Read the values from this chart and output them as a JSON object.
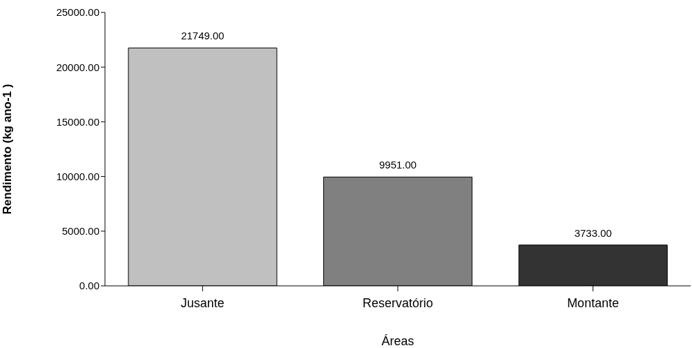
{
  "chart_data": {
    "type": "bar",
    "xlabel": "Áreas",
    "ylabel": "Rendimento (kg ano-1 )",
    "categories": [
      "Jusante",
      "Reservatório",
      "Montante"
    ],
    "values": [
      21749,
      9951,
      3733
    ],
    "colors": [
      "#c0c0c0",
      "#808080",
      "#333333"
    ],
    "value_labels": [
      "21749.00",
      "9951.00",
      "3733.00"
    ],
    "ylim": [
      0,
      25000
    ],
    "yticks": [
      {
        "value": 0,
        "label": "0.00"
      },
      {
        "value": 5000,
        "label": "5000.00"
      },
      {
        "value": 10000,
        "label": "10000.00"
      },
      {
        "value": 15000,
        "label": "15000.00"
      },
      {
        "value": 20000,
        "label": "20000.00"
      },
      {
        "value": 25000,
        "label": "25000.00"
      }
    ],
    "grid": false,
    "legend": false
  }
}
